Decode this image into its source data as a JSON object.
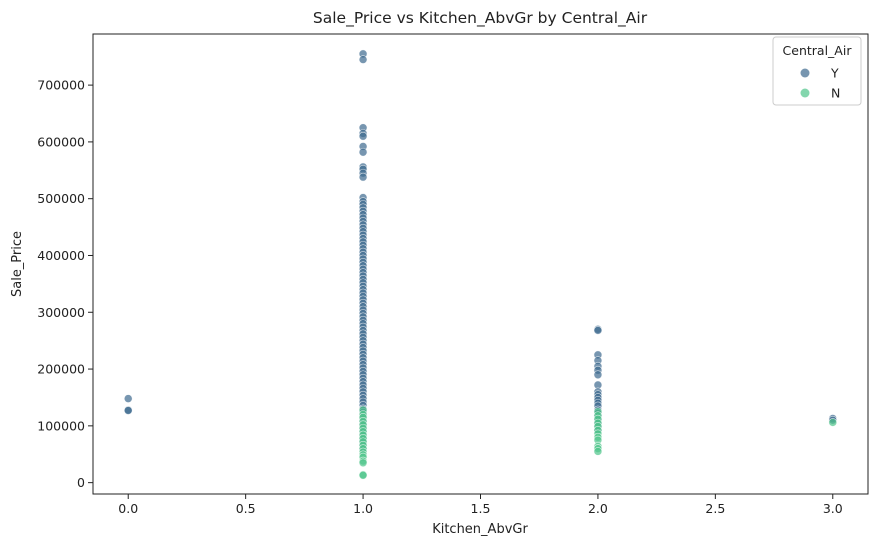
{
  "chart_data": {
    "type": "scatter",
    "title": "Sale_Price vs Kitchen_AbvGr by Central_Air",
    "xlabel": "Kitchen_AbvGr",
    "ylabel": "Sale_Price",
    "xlim": [
      -0.15,
      3.15
    ],
    "ylim": [
      -20000,
      790000
    ],
    "x_ticks": [
      0.0,
      0.5,
      1.0,
      1.5,
      2.0,
      2.5,
      3.0
    ],
    "x_tick_labels": [
      "0.0",
      "0.5",
      "1.0",
      "1.5",
      "2.0",
      "2.5",
      "3.0"
    ],
    "y_ticks": [
      0,
      100000,
      200000,
      300000,
      400000,
      500000,
      600000,
      700000
    ],
    "y_tick_labels": [
      "0",
      "100000",
      "200000",
      "300000",
      "400000",
      "500000",
      "600000",
      "700000"
    ],
    "grid": false,
    "legend": {
      "title": "Central_Air",
      "placement": "top-right"
    },
    "series": [
      {
        "name": "Y",
        "color": "#3d6a8f",
        "points": [
          [
            0,
            148000
          ],
          [
            0,
            128000
          ],
          [
            0,
            127000
          ],
          [
            1,
            755000
          ],
          [
            1,
            745000
          ],
          [
            1,
            625000
          ],
          [
            1,
            615000
          ],
          [
            1,
            610000
          ],
          [
            1,
            592000
          ],
          [
            1,
            582000
          ],
          [
            1,
            556000
          ],
          [
            1,
            552000
          ],
          [
            1,
            545000
          ],
          [
            1,
            538000
          ],
          [
            1,
            502000
          ],
          [
            1,
            495000
          ],
          [
            1,
            490000
          ],
          [
            1,
            484000
          ],
          [
            1,
            478000
          ],
          [
            1,
            472000
          ],
          [
            1,
            466000
          ],
          [
            1,
            460000
          ],
          [
            1,
            454000
          ],
          [
            1,
            448000
          ],
          [
            1,
            442000
          ],
          [
            1,
            436000
          ],
          [
            1,
            430000
          ],
          [
            1,
            424000
          ],
          [
            1,
            418000
          ],
          [
            1,
            412000
          ],
          [
            1,
            406000
          ],
          [
            1,
            400000
          ],
          [
            1,
            394000
          ],
          [
            1,
            388000
          ],
          [
            1,
            382000
          ],
          [
            1,
            376000
          ],
          [
            1,
            370000
          ],
          [
            1,
            364000
          ],
          [
            1,
            358000
          ],
          [
            1,
            352000
          ],
          [
            1,
            346000
          ],
          [
            1,
            340000
          ],
          [
            1,
            334000
          ],
          [
            1,
            328000
          ],
          [
            1,
            322000
          ],
          [
            1,
            316000
          ],
          [
            1,
            310000
          ],
          [
            1,
            304000
          ],
          [
            1,
            298000
          ],
          [
            1,
            292000
          ],
          [
            1,
            286000
          ],
          [
            1,
            280000
          ],
          [
            1,
            274000
          ],
          [
            1,
            268000
          ],
          [
            1,
            262000
          ],
          [
            1,
            256000
          ],
          [
            1,
            250000
          ],
          [
            1,
            244000
          ],
          [
            1,
            238000
          ],
          [
            1,
            232000
          ],
          [
            1,
            226000
          ],
          [
            1,
            220000
          ],
          [
            1,
            214000
          ],
          [
            1,
            208000
          ],
          [
            1,
            202000
          ],
          [
            1,
            196000
          ],
          [
            1,
            190000
          ],
          [
            1,
            184000
          ],
          [
            1,
            178000
          ],
          [
            1,
            172000
          ],
          [
            1,
            166000
          ],
          [
            1,
            160000
          ],
          [
            1,
            154000
          ],
          [
            1,
            148000
          ],
          [
            1,
            142000
          ],
          [
            1,
            136000
          ],
          [
            1,
            130000
          ],
          [
            1,
            124000
          ],
          [
            1,
            118000
          ],
          [
            1,
            112000
          ],
          [
            1,
            106000
          ],
          [
            1,
            100000
          ],
          [
            1,
            94000
          ],
          [
            1,
            88000
          ],
          [
            1,
            82000
          ],
          [
            1,
            76000
          ],
          [
            1,
            70000
          ],
          [
            1,
            64000
          ],
          [
            1,
            58000
          ],
          [
            2,
            270000
          ],
          [
            2,
            268000
          ],
          [
            2,
            225000
          ],
          [
            2,
            215000
          ],
          [
            2,
            205000
          ],
          [
            2,
            198000
          ],
          [
            2,
            190000
          ],
          [
            2,
            172000
          ],
          [
            2,
            160000
          ],
          [
            2,
            155000
          ],
          [
            2,
            150000
          ],
          [
            2,
            145000
          ],
          [
            2,
            140000
          ],
          [
            2,
            135000
          ],
          [
            2,
            128000
          ],
          [
            2,
            122000
          ],
          [
            2,
            117000
          ],
          [
            2,
            110000
          ],
          [
            2,
            104000
          ],
          [
            2,
            98000
          ],
          [
            2,
            93000
          ],
          [
            3,
            113000
          ],
          [
            3,
            110000
          ]
        ]
      },
      {
        "name": "N",
        "color": "#4ec48a",
        "points": [
          [
            1,
            128000
          ],
          [
            1,
            120000
          ],
          [
            1,
            115000
          ],
          [
            1,
            108000
          ],
          [
            1,
            102000
          ],
          [
            1,
            96000
          ],
          [
            1,
            90000
          ],
          [
            1,
            84000
          ],
          [
            1,
            78000
          ],
          [
            1,
            72000
          ],
          [
            1,
            66000
          ],
          [
            1,
            60000
          ],
          [
            1,
            54000
          ],
          [
            1,
            49000
          ],
          [
            1,
            45000
          ],
          [
            1,
            38000
          ],
          [
            1,
            35000
          ],
          [
            1,
            14000
          ],
          [
            1,
            13000
          ],
          [
            2,
            125000
          ],
          [
            2,
            118000
          ],
          [
            2,
            112000
          ],
          [
            2,
            105000
          ],
          [
            2,
            99000
          ],
          [
            2,
            92000
          ],
          [
            2,
            86000
          ],
          [
            2,
            80000
          ],
          [
            2,
            75000
          ],
          [
            2,
            64000
          ],
          [
            2,
            60000
          ],
          [
            2,
            55000
          ],
          [
            3,
            106000
          ]
        ]
      }
    ]
  }
}
